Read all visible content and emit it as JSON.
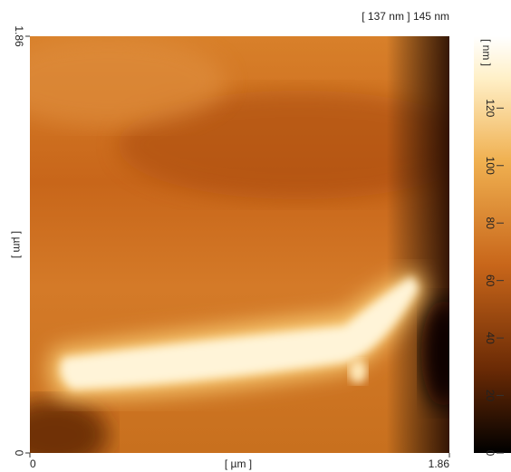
{
  "chart_data": {
    "type": "heatmap",
    "title": "[ 137 nm ] 145 nm",
    "x_label": "[ µm ]",
    "y_label": "[ µm ]",
    "xlim": [
      0,
      1.86
    ],
    "xticks": [
      0,
      1.86
    ],
    "ylim": [
      0,
      1.86
    ],
    "yticks": [
      0,
      1.86
    ],
    "colorbar": {
      "label": "[ nm ]",
      "lim": [
        0,
        145
      ],
      "ticks": [
        0,
        20,
        40,
        60,
        80,
        100,
        120
      ]
    }
  }
}
